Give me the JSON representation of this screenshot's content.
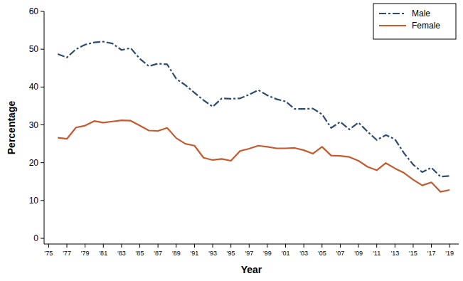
{
  "chart_data": {
    "type": "line",
    "x_label": "Year",
    "y_label": "Percentage",
    "x": [
      1976,
      1977,
      1978,
      1979,
      1980,
      1981,
      1982,
      1983,
      1984,
      1985,
      1986,
      1987,
      1988,
      1989,
      1990,
      1991,
      1992,
      1993,
      1994,
      1995,
      1996,
      1997,
      1998,
      1999,
      2000,
      2001,
      2002,
      2003,
      2004,
      2005,
      2006,
      2007,
      2008,
      2009,
      2010,
      2011,
      2012,
      2013,
      2014,
      2015,
      2016,
      2017,
      2018,
      2019
    ],
    "series": [
      {
        "name": "Male",
        "color": "#2f4b6e",
        "line_style": "dashdot",
        "values": [
          48.7,
          47.8,
          50,
          51.2,
          51.8,
          52,
          51.5,
          49.8,
          50.3,
          47.5,
          45.5,
          46.2,
          46,
          42.2,
          40.5,
          38.5,
          36.5,
          34.8,
          37,
          36.9,
          37,
          38,
          39.2,
          37.8,
          36.8,
          36.2,
          34.2,
          34.2,
          34.3,
          32.8,
          29.2,
          30.8,
          28.8,
          30.6,
          28.2,
          26,
          27.3,
          26.2,
          22.5,
          19.5,
          17.5,
          18.7,
          16.3,
          16.5
        ]
      },
      {
        "name": "Female",
        "color": "#c65a2e",
        "line_style": "solid",
        "values": [
          26.6,
          26.3,
          29.3,
          29.8,
          31,
          30.6,
          30.9,
          31.2,
          31.1,
          29.8,
          28.5,
          28.4,
          29.2,
          26.5,
          25,
          24.5,
          21.3,
          20.7,
          21,
          20.5,
          23.1,
          23.7,
          24.5,
          24.2,
          23.8,
          23.8,
          23.9,
          23.3,
          22.4,
          24.2,
          21.9,
          21.8,
          21.5,
          20.5,
          18.9,
          18,
          19.9,
          18.5,
          17.3,
          15.5,
          14,
          14.8,
          12.3,
          12.8
        ]
      }
    ],
    "xlim": [
      1974.5,
      2020
    ],
    "ylim": [
      -1.5,
      60
    ],
    "xticks": [
      {
        "value": 1975,
        "label": "'75"
      },
      {
        "value": 1977,
        "label": "'77"
      },
      {
        "value": 1979,
        "label": "'79"
      },
      {
        "value": 1981,
        "label": "'81"
      },
      {
        "value": 1983,
        "label": "'83"
      },
      {
        "value": 1985,
        "label": "'85"
      },
      {
        "value": 1987,
        "label": "'87"
      },
      {
        "value": 1989,
        "label": "'89"
      },
      {
        "value": 1991,
        "label": "'91"
      },
      {
        "value": 1993,
        "label": "'93"
      },
      {
        "value": 1995,
        "label": "'95"
      },
      {
        "value": 1997,
        "label": "'97"
      },
      {
        "value": 1999,
        "label": "'99"
      },
      {
        "value": 2001,
        "label": "'01"
      },
      {
        "value": 2003,
        "label": "'03"
      },
      {
        "value": 2005,
        "label": "'05"
      },
      {
        "value": 2007,
        "label": "'07"
      },
      {
        "value": 2009,
        "label": "'09"
      },
      {
        "value": 2011,
        "label": "'11"
      },
      {
        "value": 2013,
        "label": "'13"
      },
      {
        "value": 2015,
        "label": "'15"
      },
      {
        "value": 2017,
        "label": "'17"
      },
      {
        "value": 2019,
        "label": "'19"
      }
    ],
    "yticks": [
      0,
      10,
      20,
      30,
      40,
      50,
      60
    ],
    "legend": "top-right",
    "grid": false
  }
}
